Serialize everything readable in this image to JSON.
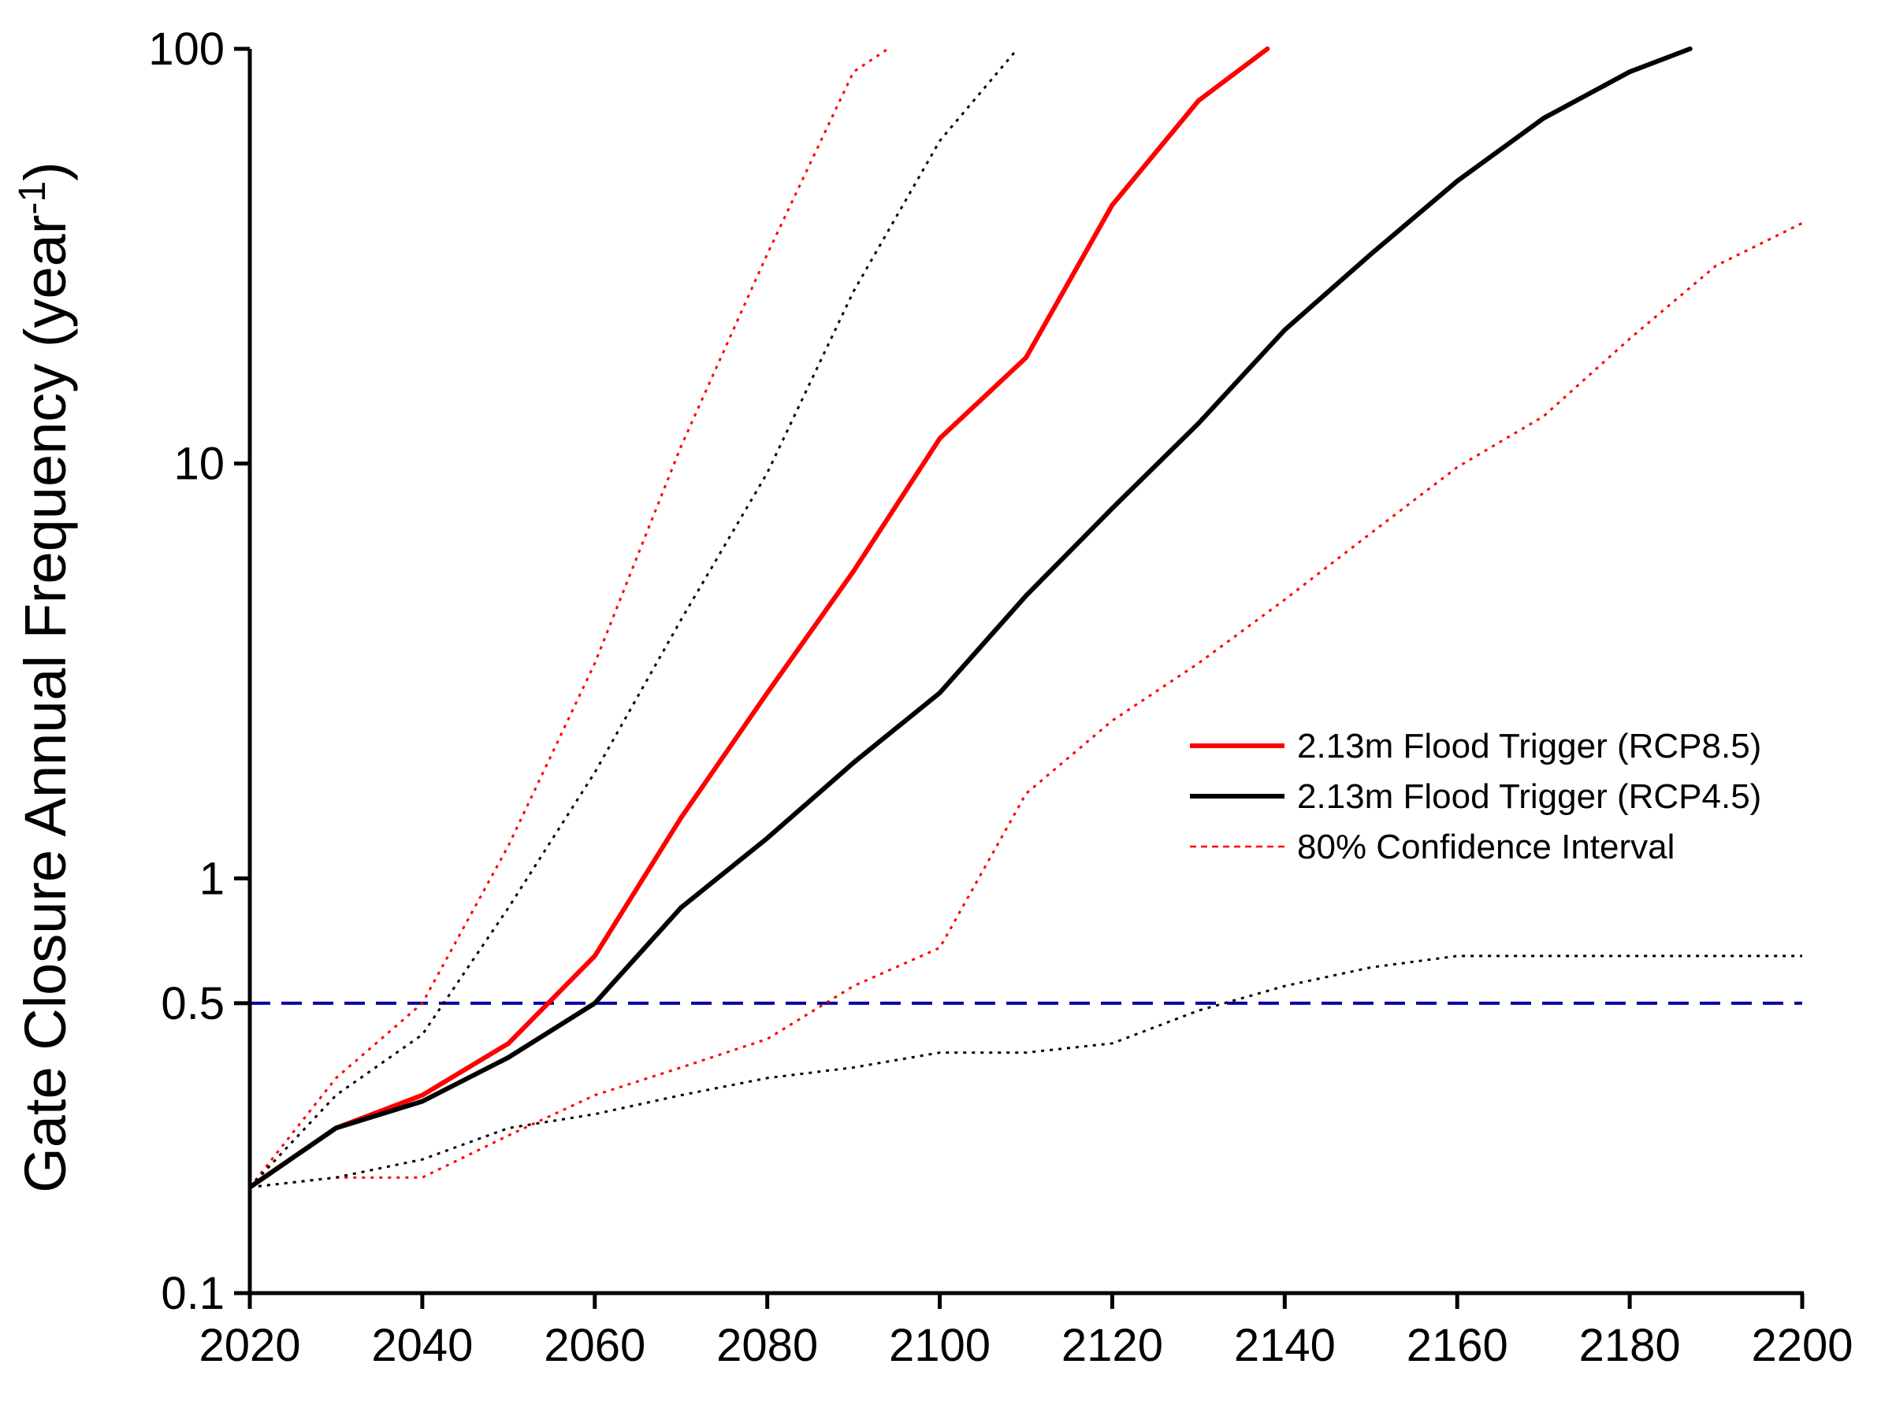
{
  "chart_data": {
    "type": "line",
    "title": "",
    "xlabel": "",
    "ylabel": "Gate Closure Annual Frequency (year",
    "ylabel_sup": "-1",
    "ylabel_close": ")",
    "yscale": "log",
    "xlim": [
      2020,
      2200
    ],
    "ylim": [
      0.1,
      100
    ],
    "x_ticks": [
      2020,
      2040,
      2060,
      2080,
      2100,
      2120,
      2140,
      2160,
      2180,
      2200
    ],
    "x_tick_labels": [
      "2020",
      "2040",
      "2060",
      "2080",
      "2100",
      "2120",
      "2140",
      "2160",
      "2180",
      "2200"
    ],
    "y_ticks": [
      0.1,
      0.5,
      1,
      10,
      100
    ],
    "y_tick_labels": [
      "0.1",
      "0.5",
      "1",
      "10",
      "100"
    ],
    "grid": false,
    "legend_position": "right",
    "legend": [
      {
        "label": "2.13m Flood Trigger (RCP8.5)",
        "color": "#ff0000",
        "style": "solid"
      },
      {
        "label": "2.13m Flood Trigger (RCP4.5)",
        "color": "#000000",
        "style": "solid"
      },
      {
        "label": "80% Confidence Interval",
        "color": "#ff0000",
        "style": "dotted"
      }
    ],
    "series": [
      {
        "name": "2.13m Flood Trigger (RCP8.5)",
        "color": "#ff0000",
        "style": "solid",
        "x": [
          2020,
          2030,
          2040,
          2050,
          2060,
          2070,
          2080,
          2090,
          2100,
          2110,
          2120,
          2130,
          2138
        ],
        "y": [
          0.18,
          0.25,
          0.3,
          0.4,
          0.65,
          1.4,
          2.8,
          5.5,
          11.5,
          18,
          42,
          75,
          100
        ]
      },
      {
        "name": "2.13m Flood Trigger (RCP4.5)",
        "color": "#000000",
        "style": "solid",
        "x": [
          2020,
          2030,
          2040,
          2050,
          2060,
          2070,
          2080,
          2090,
          2100,
          2110,
          2120,
          2130,
          2140,
          2150,
          2160,
          2170,
          2180,
          2187
        ],
        "y": [
          0.18,
          0.25,
          0.29,
          0.37,
          0.5,
          0.85,
          1.25,
          1.9,
          2.8,
          4.8,
          7.8,
          12.5,
          21,
          32,
          48,
          68,
          88,
          100
        ]
      },
      {
        "name": "RCP8.5 80% CI upper",
        "color": "#ff0000",
        "style": "dotted",
        "x": [
          2020,
          2030,
          2040,
          2050,
          2060,
          2070,
          2080,
          2090,
          2094
        ],
        "y": [
          0.18,
          0.33,
          0.5,
          1.2,
          3.3,
          11,
          32,
          88,
          100
        ]
      },
      {
        "name": "RCP8.5 80% CI lower",
        "color": "#ff0000",
        "style": "dotted",
        "x": [
          2020,
          2030,
          2040,
          2050,
          2060,
          2070,
          2080,
          2090,
          2100,
          2110,
          2120,
          2130,
          2140,
          2150,
          2160,
          2170,
          2180,
          2190,
          2200
        ],
        "y": [
          0.18,
          0.19,
          0.19,
          0.24,
          0.3,
          0.35,
          0.41,
          0.55,
          0.68,
          1.6,
          2.4,
          3.3,
          4.7,
          6.8,
          9.8,
          13,
          20,
          30,
          38
        ]
      },
      {
        "name": "RCP4.5 80% CI upper",
        "color": "#000000",
        "style": "dotted",
        "x": [
          2020,
          2030,
          2040,
          2050,
          2060,
          2070,
          2080,
          2090,
          2100,
          2109
        ],
        "y": [
          0.18,
          0.3,
          0.42,
          0.85,
          1.8,
          4.2,
          9.5,
          26,
          60,
          100
        ]
      },
      {
        "name": "RCP4.5 80% CI lower",
        "color": "#000000",
        "style": "dotted",
        "x": [
          2020,
          2030,
          2040,
          2050,
          2060,
          2070,
          2080,
          2090,
          2100,
          2110,
          2120,
          2130,
          2140,
          2150,
          2160,
          2170,
          2180,
          2190,
          2200
        ],
        "y": [
          0.18,
          0.19,
          0.21,
          0.25,
          0.27,
          0.3,
          0.33,
          0.35,
          0.38,
          0.38,
          0.4,
          0.48,
          0.55,
          0.61,
          0.65,
          0.65,
          0.65,
          0.65,
          0.65
        ]
      }
    ],
    "reference_lines": [
      {
        "name": "0.5 threshold",
        "y": 0.5,
        "color": "#0000a0",
        "style": "dashed"
      }
    ]
  }
}
